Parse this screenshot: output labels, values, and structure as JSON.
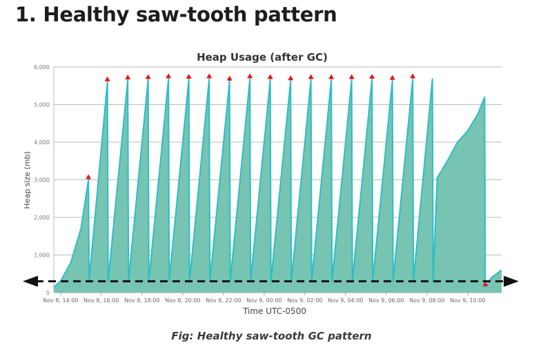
{
  "page": {
    "heading": "1. Healthy saw-tooth pattern",
    "caption": "Fig: Healthy saw-tooth GC pattern"
  },
  "chart_data": {
    "type": "area",
    "title": "Heap Usage (after GC)",
    "xlabel": "Time UTC-0500",
    "ylabel": "Heap size (mb)",
    "ylim": [
      0,
      6000
    ],
    "yticks": [
      0,
      1000,
      2000,
      3000,
      4000,
      5000,
      6000
    ],
    "ytick_labels": [
      "0",
      "1,000",
      "2,000",
      "3,000",
      "4,000",
      "5,000",
      "6,000"
    ],
    "xlim": [
      "Nov 8, 13:40",
      "Nov 9, 11:40"
    ],
    "xticks": [
      "Nov 8, 14:00",
      "Nov 8, 16:00",
      "Nov 8, 18:00",
      "Nov 8, 20:00",
      "Nov 8, 22:00",
      "Nov 9, 00:00",
      "Nov 9, 02:00",
      "Nov 9, 04:00",
      "Nov 9, 06:00",
      "Nov 9, 08:00",
      "Nov 9, 10:00"
    ],
    "grid": true,
    "colors": {
      "area_fill": "#77c4b3",
      "line": "#2bbec6",
      "marker": "#ee1111",
      "grid": "#bbbbbb",
      "arrow": "#111111"
    },
    "series": [
      {
        "points": [
          [
            "Nov 8, 13:40",
            150
          ],
          [
            "Nov 8, 14:00",
            300
          ],
          [
            "Nov 8, 14:30",
            800
          ],
          [
            "Nov 8, 15:00",
            1700
          ],
          [
            "Nov 8, 15:22",
            3000
          ],
          [
            "Nov 8, 15:24",
            300
          ],
          [
            "Nov 8, 16:18",
            5600
          ],
          [
            "Nov 8, 16:20",
            300
          ],
          [
            "Nov 8, 17:18",
            5650
          ],
          [
            "Nov 8, 17:20",
            300
          ],
          [
            "Nov 8, 18:18",
            5660
          ],
          [
            "Nov 8, 18:20",
            300
          ],
          [
            "Nov 8, 19:18",
            5680
          ],
          [
            "Nov 8, 19:20",
            300
          ],
          [
            "Nov 8, 20:18",
            5670
          ],
          [
            "Nov 8, 20:20",
            300
          ],
          [
            "Nov 8, 21:18",
            5680
          ],
          [
            "Nov 8, 21:20",
            300
          ],
          [
            "Nov 8, 22:18",
            5620
          ],
          [
            "Nov 8, 22:20",
            300
          ],
          [
            "Nov 8, 23:18",
            5680
          ],
          [
            "Nov 8, 23:20",
            300
          ],
          [
            "Nov 9, 00:18",
            5660
          ],
          [
            "Nov 9, 00:20",
            300
          ],
          [
            "Nov 9, 01:18",
            5630
          ],
          [
            "Nov 9, 01:20",
            300
          ],
          [
            "Nov 9, 02:18",
            5660
          ],
          [
            "Nov 9, 02:20",
            300
          ],
          [
            "Nov 9, 03:18",
            5660
          ],
          [
            "Nov 9, 03:20",
            300
          ],
          [
            "Nov 9, 04:18",
            5660
          ],
          [
            "Nov 9, 04:20",
            300
          ],
          [
            "Nov 9, 05:18",
            5670
          ],
          [
            "Nov 9, 05:20",
            300
          ],
          [
            "Nov 9, 06:18",
            5640
          ],
          [
            "Nov 9, 06:20",
            300
          ],
          [
            "Nov 9, 07:18",
            5680
          ],
          [
            "Nov 9, 07:20",
            300
          ],
          [
            "Nov 9, 08:16",
            5680
          ],
          [
            "Nov 9, 08:18",
            300
          ],
          [
            "Nov 9, 08:30",
            3050
          ],
          [
            "Nov 9, 09:00",
            3500
          ],
          [
            "Nov 9, 09:30",
            4000
          ],
          [
            "Nov 9, 10:00",
            4300
          ],
          [
            "Nov 9, 10:30",
            4750
          ],
          [
            "Nov 9, 10:50",
            5200
          ],
          [
            "Nov 9, 10:52",
            150
          ],
          [
            "Nov 9, 11:10",
            400
          ],
          [
            "Nov 9, 11:40",
            600
          ]
        ]
      }
    ],
    "gc_markers": [
      [
        "Nov 8, 15:22",
        3000
      ],
      [
        "Nov 8, 16:18",
        5600
      ],
      [
        "Nov 8, 17:18",
        5650
      ],
      [
        "Nov 8, 18:18",
        5660
      ],
      [
        "Nov 8, 19:18",
        5680
      ],
      [
        "Nov 8, 20:18",
        5670
      ],
      [
        "Nov 8, 21:18",
        5680
      ],
      [
        "Nov 8, 22:18",
        5620
      ],
      [
        "Nov 8, 23:18",
        5680
      ],
      [
        "Nov 9, 00:18",
        5660
      ],
      [
        "Nov 9, 01:18",
        5630
      ],
      [
        "Nov 9, 02:18",
        5660
      ],
      [
        "Nov 9, 03:18",
        5660
      ],
      [
        "Nov 9, 04:18",
        5660
      ],
      [
        "Nov 9, 05:18",
        5670
      ],
      [
        "Nov 9, 06:18",
        5640
      ],
      [
        "Nov 9, 07:18",
        5680
      ],
      [
        "Nov 9, 10:52",
        150
      ]
    ],
    "baseline_arrow": {
      "y": 300,
      "style": "dashed",
      "direction": "both"
    }
  }
}
